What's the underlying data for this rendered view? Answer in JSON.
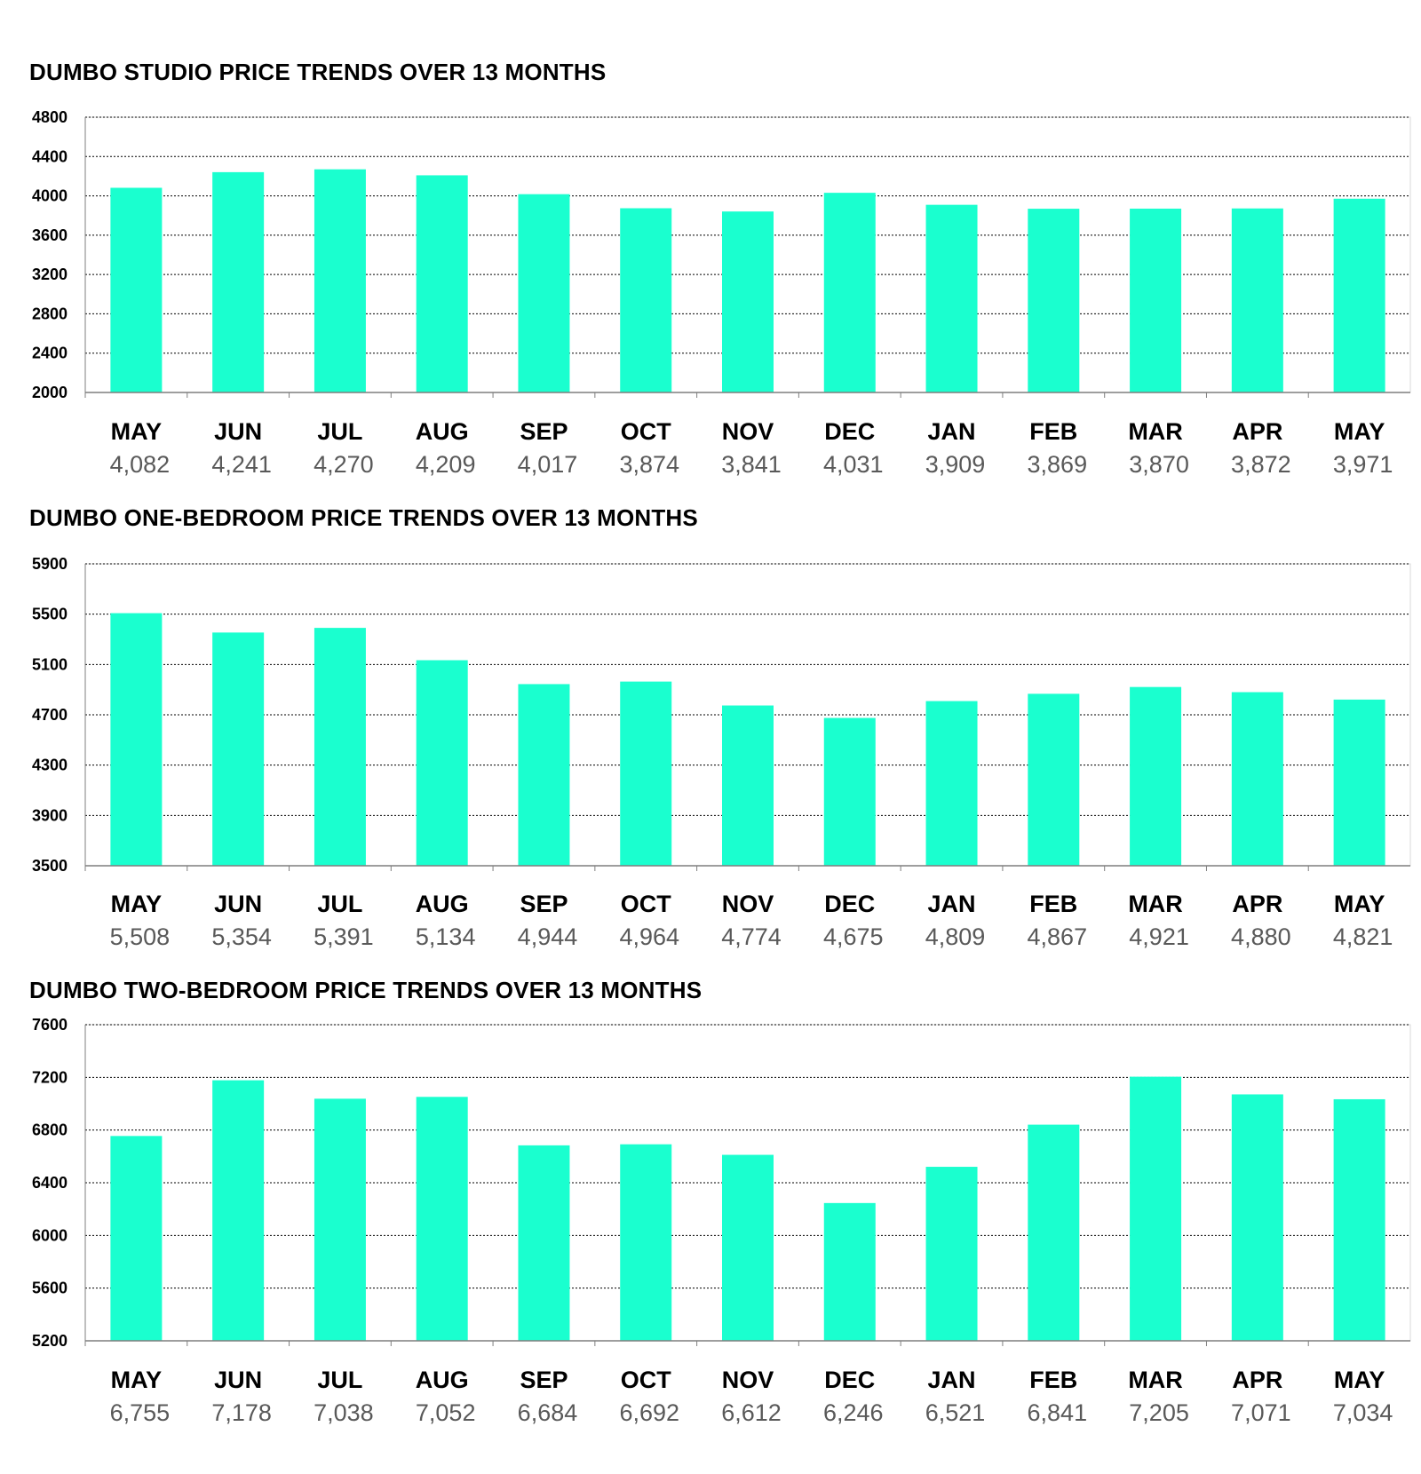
{
  "colors": {
    "bar": "#1affcf",
    "grid": "#000000",
    "value_text": "#595959"
  },
  "chart_data": [
    {
      "type": "bar",
      "title": "DUMBO STUDIO PRICE TRENDS OVER 13 MONTHS",
      "categories": [
        "MAY",
        "JUN",
        "JUL",
        "AUG",
        "SEP",
        "OCT",
        "NOV",
        "DEC",
        "JAN",
        "FEB",
        "MAR",
        "APR",
        "MAY"
      ],
      "values": [
        4082,
        4241,
        4270,
        4209,
        4017,
        3874,
        3841,
        4031,
        3909,
        3869,
        3870,
        3872,
        3971
      ],
      "value_labels": [
        "4,082",
        "4,241",
        "4,270",
        "4,209",
        "4,017",
        "3,874",
        "3,841",
        "4,031",
        "3,909",
        "3,869",
        "3,870",
        "3,872",
        "3,971"
      ],
      "yticks": [
        "2000",
        "2400",
        "2800",
        "3200",
        "3600",
        "4000",
        "4400",
        "4800"
      ],
      "ylim": [
        2000,
        4800
      ],
      "grid": true
    },
    {
      "type": "bar",
      "title": "DUMBO ONE-BEDROOM PRICE TRENDS OVER 13 MONTHS",
      "categories": [
        "MAY",
        "JUN",
        "JUL",
        "AUG",
        "SEP",
        "OCT",
        "NOV",
        "DEC",
        "JAN",
        "FEB",
        "MAR",
        "APR",
        "MAY"
      ],
      "values": [
        5508,
        5354,
        5391,
        5134,
        4944,
        4964,
        4774,
        4675,
        4809,
        4867,
        4921,
        4880,
        4821
      ],
      "value_labels": [
        "5,508",
        "5,354",
        "5,391",
        "5,134",
        "4,944",
        "4,964",
        "4,774",
        "4,675",
        "4,809",
        "4,867",
        "4,921",
        "4,880",
        "4,821"
      ],
      "yticks": [
        "3500",
        "3900",
        "4300",
        "4700",
        "5100",
        "5500",
        "5900"
      ],
      "ylim": [
        3500,
        5900
      ],
      "grid": true
    },
    {
      "type": "bar",
      "title": "DUMBO TWO-BEDROOM PRICE TRENDS OVER 13 MONTHS",
      "categories": [
        "MAY",
        "JUN",
        "JUL",
        "AUG",
        "SEP",
        "OCT",
        "NOV",
        "DEC",
        "JAN",
        "FEB",
        "MAR",
        "APR",
        "MAY"
      ],
      "values": [
        6755,
        7178,
        7038,
        7052,
        6684,
        6692,
        6612,
        6246,
        6521,
        6841,
        7205,
        7071,
        7034
      ],
      "value_labels": [
        "6,755",
        "7,178",
        "7,038",
        "7,052",
        "6,684",
        "6,692",
        "6,612",
        "6,246",
        "6,521",
        "6,841",
        "7,205",
        "7,071",
        "7,034"
      ],
      "yticks": [
        "5200",
        "5600",
        "6000",
        "6400",
        "6800",
        "7200",
        "7600"
      ],
      "ylim": [
        5200,
        7600
      ],
      "grid": true
    }
  ]
}
